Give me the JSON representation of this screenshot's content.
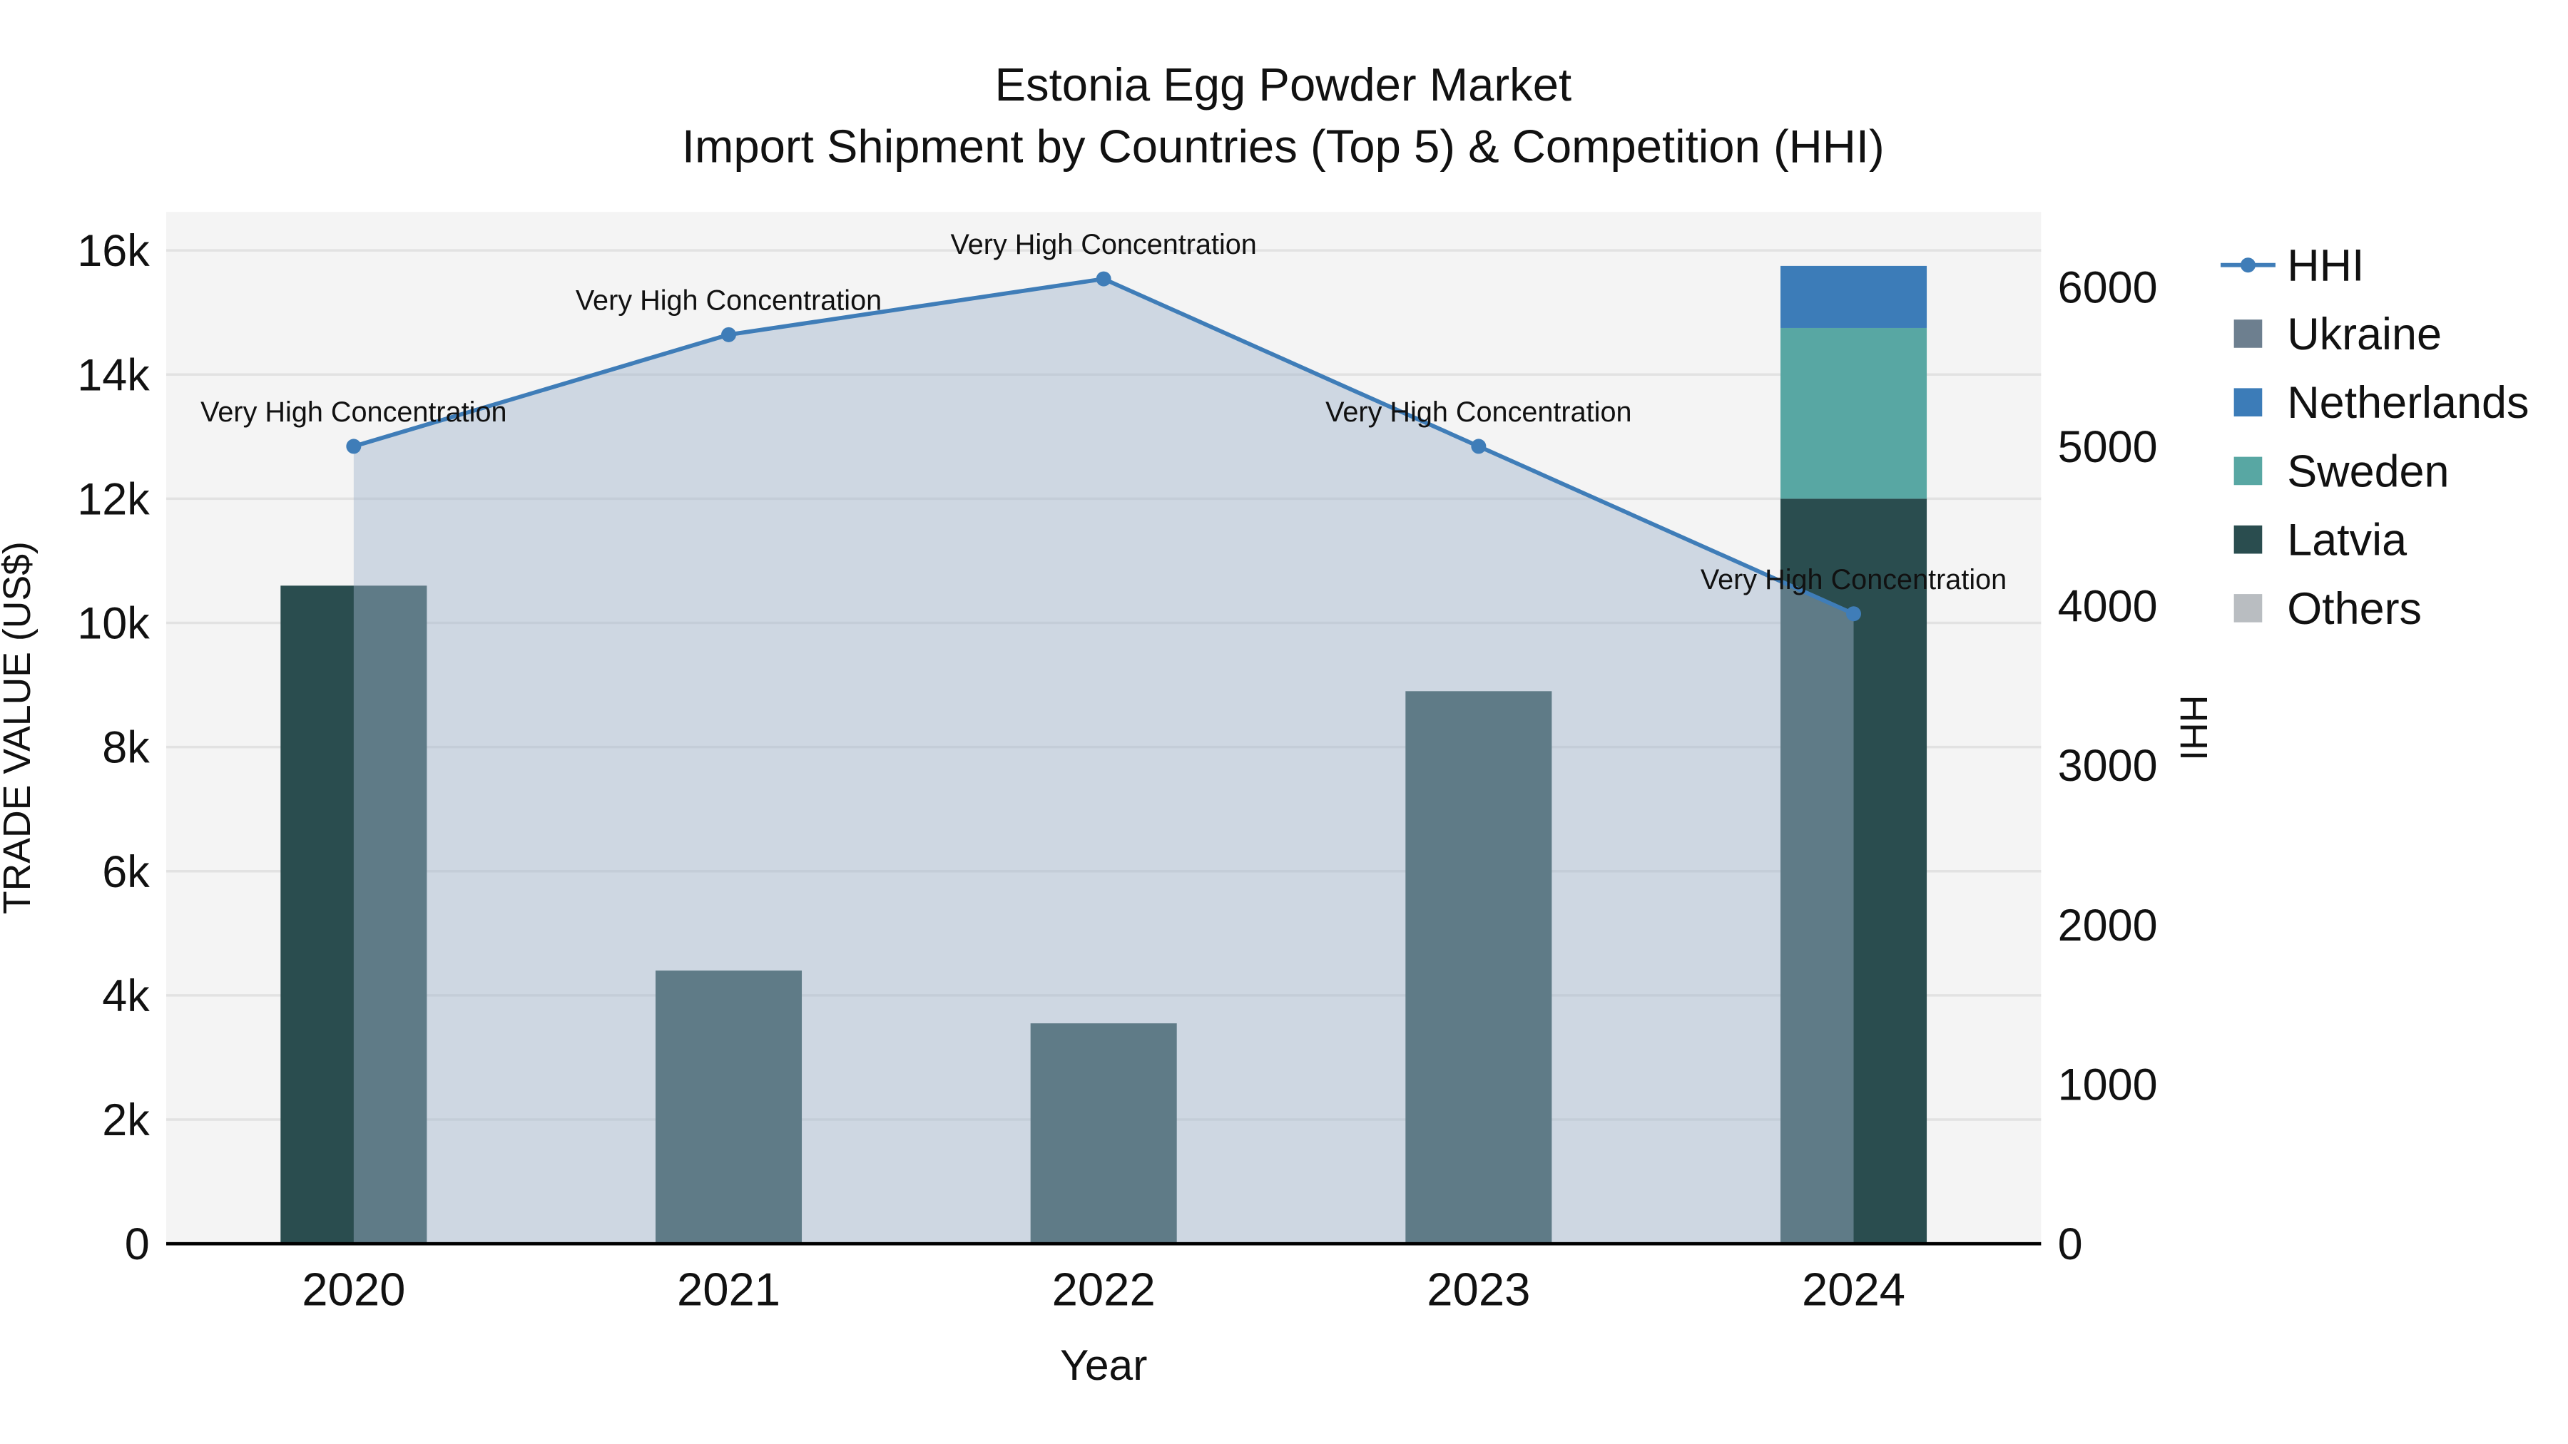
{
  "chart_data": {
    "type": "combo",
    "title": "Estonia Egg Powder Market",
    "subtitle": "Import Shipment by Countries (Top 5) & Competition (HHI)",
    "categories": [
      "2020",
      "2021",
      "2022",
      "2023",
      "2024"
    ],
    "series": [
      {
        "name": "Ukraine",
        "type": "bar",
        "color": "#6d7f8f",
        "values": [
          0,
          0,
          0,
          0,
          0
        ]
      },
      {
        "name": "Netherlands",
        "type": "bar",
        "color": "#3c7cb8",
        "values": [
          0,
          0,
          0,
          0,
          1000
        ]
      },
      {
        "name": "Sweden",
        "type": "bar",
        "color": "#58a7a3",
        "values": [
          0,
          0,
          0,
          0,
          2750
        ]
      },
      {
        "name": "Latvia",
        "type": "bar",
        "color": "#2a4d4f",
        "values": [
          10600,
          4400,
          3550,
          8900,
          12000
        ]
      },
      {
        "name": "Others",
        "type": "bar",
        "color": "#b9bdc1",
        "values": [
          0,
          0,
          0,
          0,
          0
        ]
      }
    ],
    "stack_order": [
      "Latvia",
      "Sweden",
      "Netherlands",
      "Ukraine",
      "Others"
    ],
    "line": {
      "name": "HHI",
      "color": "#3f7db8",
      "area_fill": "rgba(160,180,205,0.45)",
      "values": [
        5000,
        5700,
        6050,
        5000,
        3950
      ]
    },
    "annotation_label": "Very High Concentration",
    "axes": {
      "x": {
        "title": "Year"
      },
      "left": {
        "title": "TRADE VALUE (US$)",
        "range": [
          0,
          16620
        ],
        "ticks": [
          {
            "label": "0",
            "value": 0
          },
          {
            "label": "2k",
            "value": 2000
          },
          {
            "label": "4k",
            "value": 4000
          },
          {
            "label": "6k",
            "value": 6000
          },
          {
            "label": "8k",
            "value": 8000
          },
          {
            "label": "10k",
            "value": 10000
          },
          {
            "label": "12k",
            "value": 12000
          },
          {
            "label": "14k",
            "value": 14000
          },
          {
            "label": "16k",
            "value": 16000
          }
        ]
      },
      "right": {
        "title": "HHI",
        "range": [
          0,
          6470
        ],
        "ticks": [
          {
            "label": "0",
            "value": 0
          },
          {
            "label": "1000",
            "value": 1000
          },
          {
            "label": "2000",
            "value": 2000
          },
          {
            "label": "3000",
            "value": 3000
          },
          {
            "label": "4000",
            "value": 4000
          },
          {
            "label": "5000",
            "value": 5000
          },
          {
            "label": "6000",
            "value": 6000
          }
        ]
      }
    },
    "legend": [
      {
        "name": "HHI",
        "swatch": "line",
        "color": "#3f7db8"
      },
      {
        "name": "Ukraine",
        "swatch": "square",
        "color": "#6d7f8f"
      },
      {
        "name": "Netherlands",
        "swatch": "square",
        "color": "#3c7cb8"
      },
      {
        "name": "Sweden",
        "swatch": "square",
        "color": "#58a7a3"
      },
      {
        "name": "Latvia",
        "swatch": "square",
        "color": "#2a4d4f"
      },
      {
        "name": "Others",
        "swatch": "square",
        "color": "#b9bdc1"
      }
    ],
    "colors": {
      "plot_bg": "#f4f4f4",
      "grid": "#e2e2e2",
      "zero_line": "#000000",
      "text": "#111111"
    }
  }
}
